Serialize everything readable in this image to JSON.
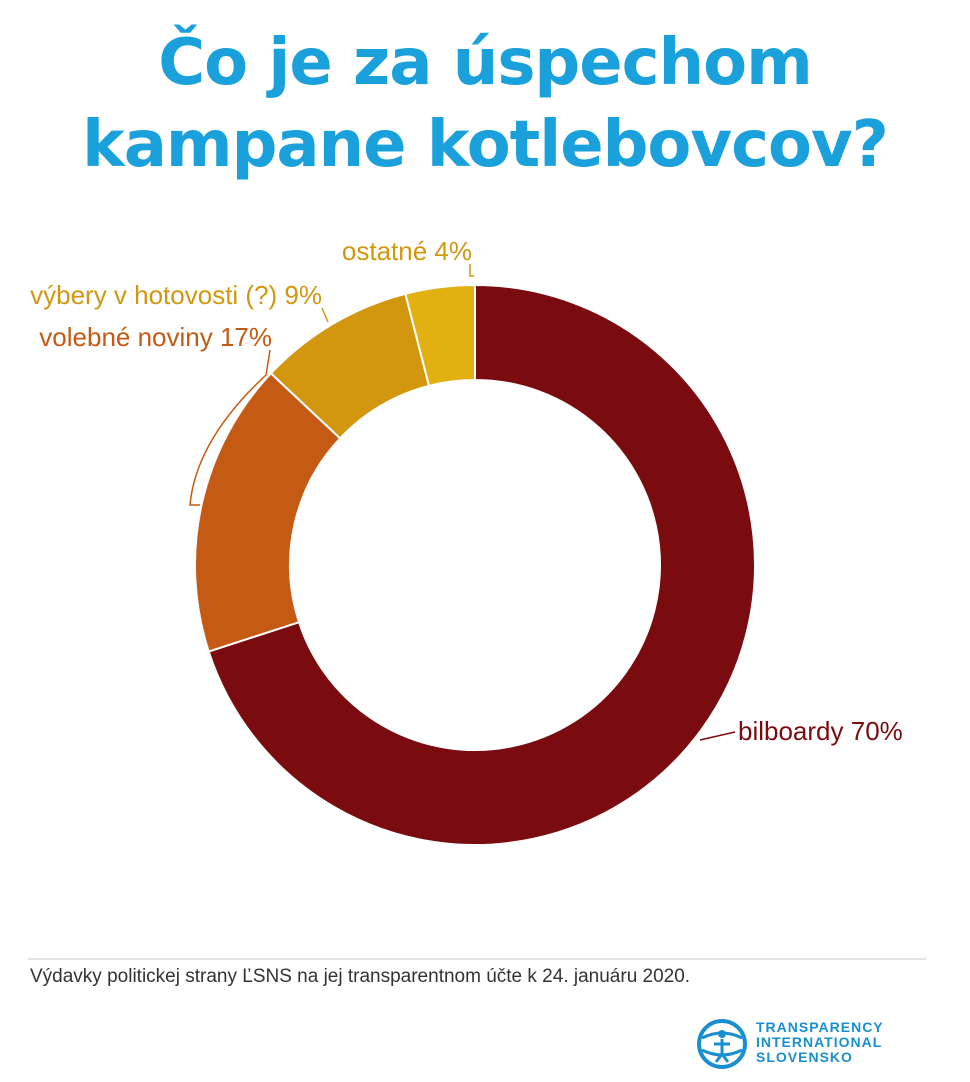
{
  "title": {
    "line1": "Čo je za úspechom",
    "line2": "kampane kotlebovcov?"
  },
  "colors": {
    "title": "#1aa1dc",
    "bilboardy": "#7a0c0f",
    "volebne_noviny": "#c45a14",
    "vybery": "#d2970f",
    "ostatne": "#e2b010",
    "label_dark": "#7a0c0f",
    "label_orange": "#c45a14",
    "label_gold": "#d2970f"
  },
  "chart_data": {
    "type": "pie",
    "variant": "donut",
    "slices": [
      {
        "label": "bilboardy 70%",
        "value": 70,
        "color": "#7a0c0f"
      },
      {
        "label": "volebné noviny 17%",
        "value": 17,
        "color": "#c45a14"
      },
      {
        "label": "výbery v hotovosti (?) 9%",
        "value": 9,
        "color": "#d2970f"
      },
      {
        "label": "ostatné 4%",
        "value": 4,
        "color": "#e2b010"
      }
    ],
    "start_angle_deg": 0,
    "direction": "clockwise"
  },
  "footer": {
    "note": "Výdavky politickej strany ĽSNS na jej transparentnom účte k 24. januáru 2020."
  },
  "logo": {
    "line1": "TRANSPARENCY",
    "line2": "INTERNATIONAL",
    "line3": "SLOVENSKO",
    "icon": "globe-figure-icon"
  }
}
